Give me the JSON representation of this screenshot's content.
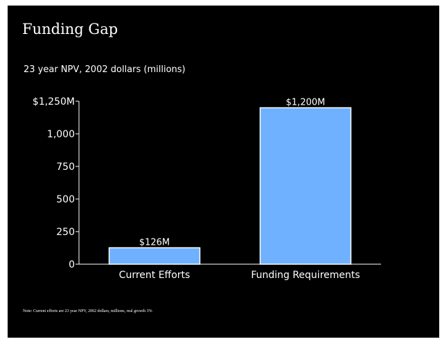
{
  "slide": {
    "title": "Funding Gap",
    "subtitle": "23 year NPV, 2002 dollars (millions)",
    "note": "Note:  Current efforts are 23 year NPV, 2002 dollars, millions, real growth 3%"
  },
  "colors": {
    "background": "#000000",
    "bar_fill": "#6fb1ff",
    "bar_stroke": "#ffffff",
    "text": "#ffffff"
  },
  "chart_data": {
    "type": "bar",
    "title": "",
    "xlabel": "",
    "ylabel": "",
    "categories": [
      "Current Efforts",
      "Funding Requirements"
    ],
    "values": [
      126,
      1200
    ],
    "data_labels": [
      "$126M",
      "$1,200M"
    ],
    "ylim": [
      0,
      1250
    ],
    "yticks": [
      0,
      250,
      500,
      750,
      1000,
      1250
    ],
    "ytick_labels": [
      "0",
      "250",
      "500",
      "750",
      "1,000",
      "$1,250M"
    ],
    "grid": false,
    "legend": "none"
  }
}
